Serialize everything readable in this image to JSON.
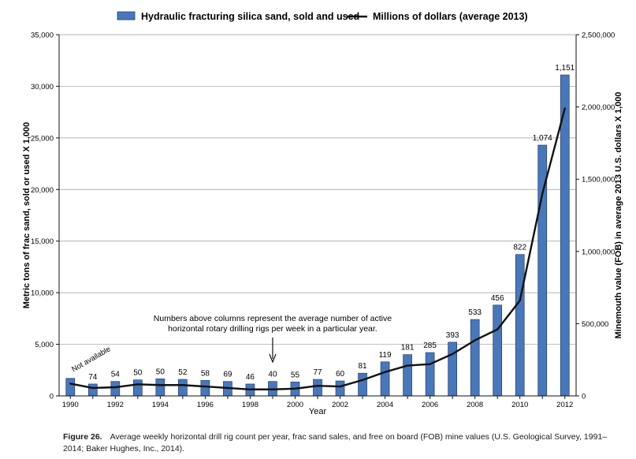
{
  "chart_data": {
    "type": "bar",
    "title": "",
    "legend": {
      "position": "top",
      "bar_label": "Hydraulic fracturing silica sand, sold and used",
      "line_label": "Millions of dollars (average 2013)"
    },
    "xlabel": "Year",
    "ylabel": "Metric tons of frac sand, sold or used X 1,000",
    "y2label": "Minemouth value (FOB) in average 2013 U.S. dollars X 1,000",
    "categories": [
      "1990",
      "1991",
      "1992",
      "1993",
      "1994",
      "1995",
      "1996",
      "1997",
      "1998",
      "1999",
      "2000",
      "2001",
      "2002",
      "2003",
      "2004",
      "2005",
      "2006",
      "2007",
      "2008",
      "2009",
      "2010",
      "2011",
      "2012"
    ],
    "x_tick_labels": [
      "1990",
      "1992",
      "1994",
      "1996",
      "1998",
      "2000",
      "2002",
      "2004",
      "2006",
      "2008",
      "2010",
      "2012"
    ],
    "ylim": [
      0,
      35000
    ],
    "y_ticks": [
      0,
      5000,
      10000,
      15000,
      20000,
      25000,
      30000,
      35000
    ],
    "y_tick_labels": [
      "0",
      "5,000",
      "10,000",
      "15,000",
      "20,000",
      "25,000",
      "30,000",
      "35,000"
    ],
    "y2lim": [
      0,
      2500000
    ],
    "y2_ticks": [
      0,
      500000,
      1000000,
      1500000,
      2000000,
      2500000
    ],
    "y2_tick_labels": [
      "0",
      "500,000",
      "1,000,000",
      "1,500,000",
      "2,000,000",
      "2,500,000"
    ],
    "series": [
      {
        "name": "Hydraulic fracturing silica sand, sold and used",
        "type": "bar",
        "axis": "left",
        "color": "#4a77b8",
        "values": [
          1700,
          1150,
          1400,
          1550,
          1650,
          1600,
          1500,
          1400,
          1150,
          1400,
          1350,
          1600,
          1450,
          2200,
          3300,
          4000,
          4200,
          5200,
          7400,
          8800,
          13700,
          24300,
          31100
        ]
      },
      {
        "name": "Millions of dollars (average 2013)",
        "type": "line",
        "axis": "right",
        "color": "#111111",
        "values": [
          85000,
          55000,
          60000,
          80000,
          75000,
          75000,
          65000,
          55000,
          45000,
          45000,
          50000,
          70000,
          65000,
          110000,
          165000,
          210000,
          220000,
          290000,
          385000,
          460000,
          660000,
          1400000,
          1990000
        ]
      }
    ],
    "data_labels": [
      "Not available",
      "74",
      "54",
      "50",
      "50",
      "52",
      "58",
      "69",
      "46",
      "40",
      "55",
      "77",
      "60",
      "81",
      "119",
      "181",
      "285",
      "393",
      "533",
      "456",
      "822",
      "1,074",
      "1,151"
    ],
    "annotation": {
      "text_line1": "Numbers above columns represent the average number of active",
      "text_line2": "horizontal rotary drilling rigs per week in a particular year.",
      "arrow_target": "1999"
    },
    "grid": true
  },
  "caption": {
    "label": "Figure 26.",
    "text": "Average weekly horizontal drill rig count per year, frac sand sales, and free on board (FOB) mine values (U.S. Geological Survey, 1991–2014; Baker Hughes, Inc., 2014)."
  }
}
